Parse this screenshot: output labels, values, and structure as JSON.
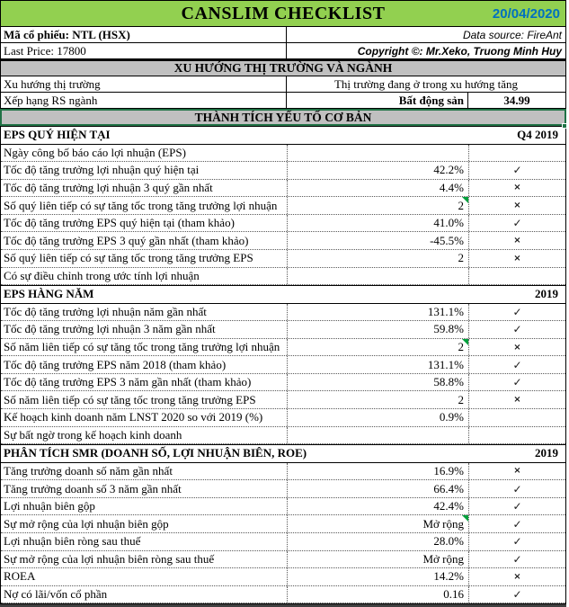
{
  "header": {
    "title": "CANSLIM CHECKLIST",
    "date": "20/04/2020"
  },
  "info": {
    "stock_code": "Mã cổ phiếu: NTL (HSX)",
    "data_source": "Data source: FireAnt",
    "last_price": "Last Price: 17800",
    "copyright": "Copyright ©: Mr.Xeko, Truong Minh Huy"
  },
  "sections": {
    "market_industry": "XU HƯỚNG THỊ TRƯỜNG VÀ NGÀNH",
    "fundamentals": "THÀNH TÍCH YẾU TỐ CƠ BẢN"
  },
  "market": {
    "trend_label": "Xu hướng thị trường",
    "trend_value": "Thị trường đang ở trong xu hướng tăng",
    "rs_label": "Xếp hạng RS ngành",
    "rs_industry": "Bất động sản",
    "rs_score": "34.99"
  },
  "icons": {
    "check": "✓",
    "cross": "×",
    "note_indicator": "green-corner-triangle"
  },
  "colors": {
    "header_green": "#92D050",
    "date_blue": "#0070C0",
    "section_gray": "#C0C0C0",
    "selection_green": "#217346",
    "note_green": "#00A03C"
  },
  "checklist": {
    "rows": [
      {
        "type": "subheader",
        "label": "EPS QUÝ HIỆN TẠI",
        "period": "Q4 2019"
      },
      {
        "type": "item",
        "label": "Ngày công bố báo cáo lợi nhuận (EPS)",
        "value": "",
        "mark": ""
      },
      {
        "type": "item",
        "label": "Tốc độ tăng trưởng lợi nhuận quý hiện tại",
        "value": "42.2%",
        "mark": "check"
      },
      {
        "type": "item",
        "label": "Tốc độ tăng trưởng lợi nhuận 3 quý gần nhất",
        "value": "4.4%",
        "mark": "cross"
      },
      {
        "type": "item",
        "label": "Số quý liên tiếp có sự tăng tốc trong tăng trưởng lợi nhuận",
        "value": "2",
        "mark": "cross",
        "note": true
      },
      {
        "type": "item",
        "label": "Tốc độ tăng trưởng EPS quý hiện tại (tham khảo)",
        "value": "41.0%",
        "mark": "check"
      },
      {
        "type": "item",
        "label": "Tốc độ tăng trưởng EPS 3 quý gần nhất (tham khảo)",
        "value": "-45.5%",
        "mark": "cross"
      },
      {
        "type": "item",
        "label": "Số quý liên tiếp có sự tăng tốc trong tăng trưởng EPS",
        "value": "2",
        "mark": "cross"
      },
      {
        "type": "item",
        "label": "Có sự điều chỉnh trong ước tính lợi nhuận",
        "value": "",
        "mark": ""
      },
      {
        "type": "subheader",
        "label": "EPS HÀNG NĂM",
        "period": "2019"
      },
      {
        "type": "item",
        "label": "Tốc độ tăng trưởng lợi nhuận năm gần nhất",
        "value": "131.1%",
        "mark": "check"
      },
      {
        "type": "item",
        "label": "Tốc độ tăng trưởng lợi nhuận 3 năm gần nhất",
        "value": "59.8%",
        "mark": "check"
      },
      {
        "type": "item",
        "label": "Số năm liên tiếp có sự tăng tốc trong tăng trưởng lợi nhuận",
        "value": "2",
        "mark": "cross",
        "note": true
      },
      {
        "type": "item",
        "label": "Tốc độ tăng trưởng EPS năm 2018 (tham khảo)",
        "value": "131.1%",
        "mark": "check"
      },
      {
        "type": "item",
        "label": "Tốc độ tăng trưởng EPS 3 năm gần nhất (tham khảo)",
        "value": "58.8%",
        "mark": "check"
      },
      {
        "type": "item",
        "label": "Số năm liên tiếp có sự tăng tốc trong tăng trưởng EPS",
        "value": "2",
        "mark": "cross"
      },
      {
        "type": "item",
        "label": "Kế hoạch kinh doanh năm LNST 2020 so với 2019 (%)",
        "value": "0.9%",
        "mark": ""
      },
      {
        "type": "item",
        "label": "Sự bất ngờ trong kế hoạch kinh doanh",
        "value": "",
        "mark": ""
      },
      {
        "type": "subheader",
        "label": "PHÂN TÍCH SMR (DOANH SỐ, LỢI NHUẬN BIÊN, ROE)",
        "period": "2019"
      },
      {
        "type": "item",
        "label": "Tăng trưởng doanh số năm gần nhất",
        "value": "16.9%",
        "mark": "cross"
      },
      {
        "type": "item",
        "label": "Tăng trưởng doanh số 3 năm gần nhất",
        "value": "66.4%",
        "mark": "check"
      },
      {
        "type": "item",
        "label": "Lợi nhuận biên gộp",
        "value": "42.4%",
        "mark": "check"
      },
      {
        "type": "item",
        "label": "Sự mở rộng của lợi nhuận biên gộp",
        "value": "Mở rộng",
        "mark": "check",
        "note": true
      },
      {
        "type": "item",
        "label": "Lợi nhuận biên ròng sau thuế",
        "value": "28.0%",
        "mark": "check"
      },
      {
        "type": "item",
        "label": "Sự mở rộng của lợi nhuận biên ròng sau thuế",
        "value": "Mở rộng",
        "mark": "check"
      },
      {
        "type": "item",
        "label": "ROEA",
        "value": "14.2%",
        "mark": "cross"
      },
      {
        "type": "item",
        "label": "Nợ có lãi/vốn cổ phần",
        "value": "0.16",
        "mark": "check"
      }
    ]
  }
}
